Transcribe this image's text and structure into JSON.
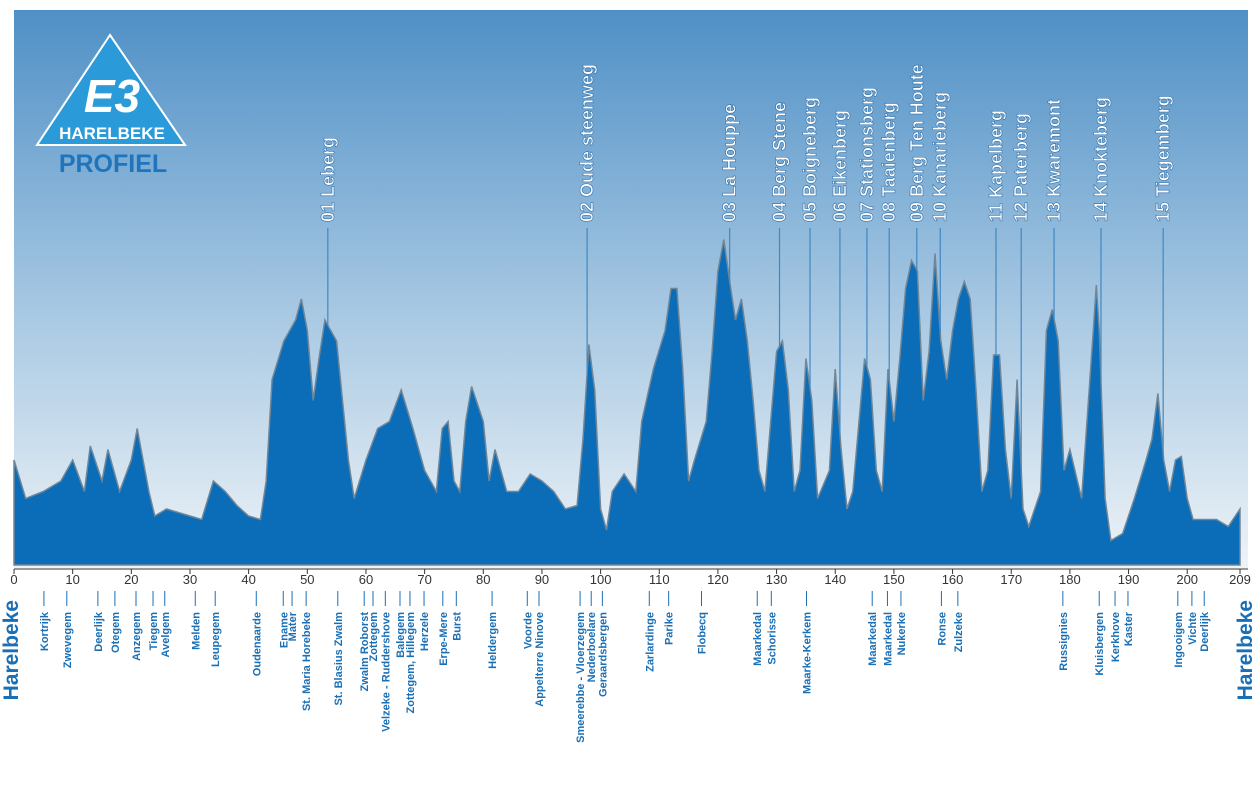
{
  "logo": {
    "mark": "E3",
    "city": "HARELBEKE",
    "caption": "PROFIEL"
  },
  "chart_data": {
    "type": "area",
    "color": "#0b6cb8",
    "xlim": [
      0,
      209
    ],
    "xticks": [
      0,
      10,
      20,
      30,
      40,
      50,
      60,
      70,
      80,
      90,
      100,
      110,
      120,
      130,
      140,
      150,
      160,
      170,
      180,
      190,
      200,
      209
    ],
    "ylim": [
      0,
      100
    ],
    "x": [
      0,
      2,
      5,
      8,
      10,
      12,
      13,
      15,
      16,
      18,
      20,
      21,
      23,
      24,
      26,
      30,
      32,
      34,
      36,
      38,
      40,
      42,
      43,
      44,
      46,
      48,
      49,
      50,
      51,
      52,
      53,
      55,
      56,
      57,
      58,
      60,
      62,
      64,
      66,
      68,
      70,
      72,
      73,
      74,
      75,
      76,
      77,
      78,
      80,
      81,
      82,
      84,
      86,
      88,
      90,
      92,
      94,
      96,
      97,
      98,
      99,
      100,
      101,
      102,
      104,
      106,
      107,
      109,
      111,
      112,
      113,
      114,
      115,
      116,
      118,
      119,
      120,
      121,
      122,
      123,
      124,
      125,
      126,
      127,
      128,
      129,
      130,
      131,
      132,
      133,
      134,
      135,
      136,
      137,
      139,
      140,
      141,
      142,
      143,
      145,
      146,
      147,
      148,
      149,
      150,
      151,
      152,
      153,
      154,
      155,
      156,
      157,
      158,
      159,
      160,
      161,
      162,
      163,
      164,
      165,
      166,
      167,
      168,
      169,
      170,
      171,
      172,
      173,
      175,
      176,
      177,
      178,
      179,
      180,
      182,
      184,
      184.5,
      185,
      186,
      187,
      189,
      191,
      193,
      194,
      195,
      196,
      197,
      198,
      199,
      200,
      201,
      203,
      205,
      207,
      209
    ],
    "values": [
      30,
      19,
      21,
      24,
      30,
      21,
      34,
      24,
      33,
      21,
      30,
      39,
      21,
      14,
      16,
      14,
      13,
      24,
      21,
      17,
      14,
      13,
      24,
      53,
      64,
      70,
      76,
      67,
      47,
      59,
      70,
      64,
      47,
      30,
      19,
      30,
      39,
      41,
      50,
      39,
      27,
      21,
      39,
      41,
      24,
      21,
      41,
      51,
      41,
      24,
      33,
      21,
      21,
      26,
      24,
      21,
      16,
      17,
      36,
      63,
      50,
      16,
      10,
      21,
      26,
      21,
      41,
      56,
      67,
      79,
      79,
      56,
      24,
      30,
      41,
      61,
      84,
      93,
      81,
      70,
      76,
      64,
      47,
      27,
      21,
      41,
      61,
      64,
      50,
      21,
      27,
      59,
      47,
      19,
      27,
      56,
      33,
      16,
      21,
      59,
      53,
      27,
      21,
      56,
      41,
      59,
      79,
      87,
      84,
      47,
      61,
      89,
      64,
      53,
      67,
      76,
      81,
      76,
      50,
      21,
      27,
      60,
      60,
      33,
      19,
      53,
      16,
      11,
      21,
      67,
      73,
      64,
      27,
      33,
      19,
      67,
      80,
      67,
      19,
      7,
      9,
      19,
      30,
      36,
      49,
      30,
      21,
      30,
      31,
      19,
      13,
      13,
      13,
      11,
      16
    ],
    "climbs": [
      {
        "label": "01 Leberg",
        "x": 53.5
      },
      {
        "label": "02 Oude steenweg",
        "x": 97.7
      },
      {
        "label": "03 La Houppe",
        "x": 122
      },
      {
        "label": "04 Berg Stene",
        "x": 130.5
      },
      {
        "label": "05 Boigneberg",
        "x": 135.7
      },
      {
        "label": "06 Eikenberg",
        "x": 140.8
      },
      {
        "label": "07 Stationsberg",
        "x": 145.4
      },
      {
        "label": "08 Taaienberg",
        "x": 149.2
      },
      {
        "label": "09 Berg Ten Houte",
        "x": 153.9
      },
      {
        "label": "10 Kanarieberg",
        "x": 157.9
      },
      {
        "label": "11 Kapelberg",
        "x": 167.4
      },
      {
        "label": "12 Paterberg",
        "x": 171.7
      },
      {
        "label": "13 Kwaremont",
        "x": 177.3
      },
      {
        "label": "14 Knokteberg",
        "x": 185.3
      },
      {
        "label": "15 Tiegemberg",
        "x": 195.9
      }
    ],
    "start": "Harelbeke",
    "finish": "Harelbeke",
    "towns": [
      {
        "label": "Kortrijk",
        "x": 5.1
      },
      {
        "label": "Zwevegem",
        "x": 9
      },
      {
        "label": "Deerlijk",
        "x": 14.3
      },
      {
        "label": "Otegem",
        "x": 17.2
      },
      {
        "label": "Anzegem",
        "x": 20.8
      },
      {
        "label": "Tiegem",
        "x": 23.7
      },
      {
        "label": "Avelgem",
        "x": 25.7
      },
      {
        "label": "Melden",
        "x": 30.9
      },
      {
        "label": "Leupegem",
        "x": 34.3
      },
      {
        "label": "Oudenaarde",
        "x": 41.3
      },
      {
        "label": "Ename",
        "x": 45.9
      },
      {
        "label": "Mater",
        "x": 47.4
      },
      {
        "label": "St. Maria Horebeke",
        "x": 49.8
      },
      {
        "label": "St. Blasius Zwalm",
        "x": 55.2
      },
      {
        "label": "Zwalm Roborst",
        "x": 59.7
      },
      {
        "label": "Zottegem",
        "x": 61.2
      },
      {
        "label": "Velzeke - Ruddershove",
        "x": 63.3
      },
      {
        "label": "Balegem",
        "x": 65.8
      },
      {
        "label": "Zottegem, Hillegem",
        "x": 67.5
      },
      {
        "label": "Herzele",
        "x": 69.9
      },
      {
        "label": "Erpe-Mere",
        "x": 73.1
      },
      {
        "label": "Burst",
        "x": 75.4
      },
      {
        "label": "Heldergem",
        "x": 81.5
      },
      {
        "label": "Voorde",
        "x": 87.5
      },
      {
        "label": "Appelterre Ninove",
        "x": 89.5
      },
      {
        "label": "Smeerebbe - Vloerzegem",
        "x": 96.5
      },
      {
        "label": "Nederboelare",
        "x": 98.4
      },
      {
        "label": "Geraardsbergen",
        "x": 100.3
      },
      {
        "label": "Zarlardinge",
        "x": 108.3
      },
      {
        "label": "Parike",
        "x": 111.6
      },
      {
        "label": "Flobecq",
        "x": 117.2
      },
      {
        "label": "Maarkedal",
        "x": 126.7
      },
      {
        "label": "Schorisse",
        "x": 129.1
      },
      {
        "label": "Maarke-Kerkem",
        "x": 135.1
      },
      {
        "label": "Maarkedal",
        "x": 146.3
      },
      {
        "label": "Maarkedal",
        "x": 148.9
      },
      {
        "label": "Nukerke",
        "x": 151.2
      },
      {
        "label": "Ronse",
        "x": 158.1
      },
      {
        "label": "Zulzeke",
        "x": 160.9
      },
      {
        "label": "Russignies",
        "x": 178.8
      },
      {
        "label": "Kluisbergen",
        "x": 185
      },
      {
        "label": "Kerkhove",
        "x": 187.7
      },
      {
        "label": "Kaster",
        "x": 189.9
      },
      {
        "label": "Ingooigem",
        "x": 198.4
      },
      {
        "label": "Vichte",
        "x": 200.8
      },
      {
        "label": "Deerlijk",
        "x": 202.9
      }
    ]
  }
}
